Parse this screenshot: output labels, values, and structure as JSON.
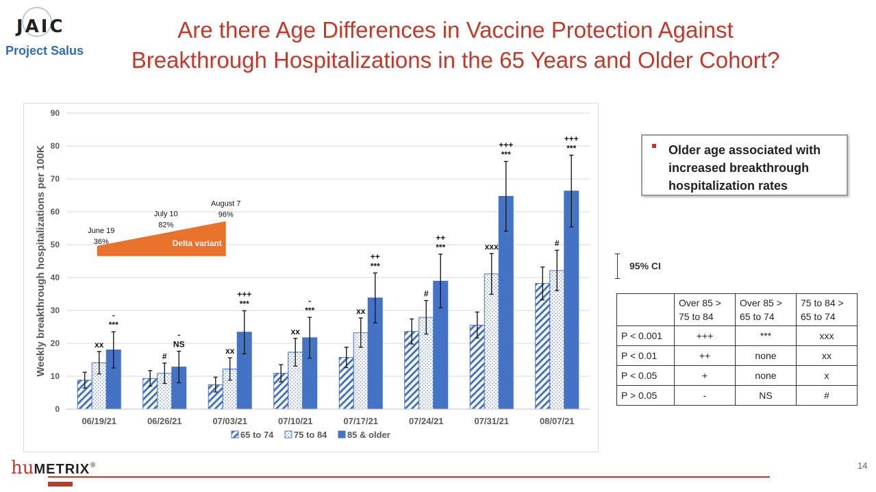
{
  "header": {
    "logo_text": "JAIC",
    "logo_subtitle": "Project Salus",
    "title_line1": "Are there Age Differences in Vaccine Protection Against",
    "title_line2": "Breakthrough Hospitalizations in the 65 Years and Older Cohort?"
  },
  "chart_data": {
    "type": "bar",
    "ylabel": "Weekly breakthrough hospitalizations per 100K",
    "xlabel": "",
    "ylim": [
      0,
      90
    ],
    "yticks": [
      0,
      10,
      20,
      30,
      40,
      50,
      60,
      70,
      80,
      90
    ],
    "grid": true,
    "legend_position": "bottom",
    "categories": [
      "06/19/21",
      "06/26/21",
      "07/03/21",
      "07/10/21",
      "07/17/21",
      "07/24/21",
      "07/31/21",
      "08/07/21"
    ],
    "series": [
      {
        "name": "65 to 74",
        "color": "#4472c4",
        "pattern": "diagonal-hatch",
        "values": [
          8.8,
          9.3,
          7.4,
          10.9,
          15.7,
          23.6,
          25.5,
          38.2
        ],
        "ci_low": [
          6.4,
          7.0,
          5.2,
          8.3,
          12.6,
          19.8,
          21.6,
          33.2
        ],
        "ci_high": [
          11.2,
          11.7,
          9.7,
          13.5,
          18.8,
          27.4,
          29.5,
          43.2
        ]
      },
      {
        "name": "75 to 84",
        "color": "#4472c4",
        "pattern": "dots",
        "values": [
          14.1,
          10.9,
          12.2,
          17.3,
          23.2,
          27.9,
          41.1,
          42.1
        ],
        "ci_low": [
          10.7,
          7.8,
          8.8,
          13.1,
          18.8,
          22.8,
          34.9,
          36.0
        ],
        "ci_high": [
          17.5,
          14.0,
          15.6,
          21.5,
          27.7,
          33.0,
          47.3,
          48.3
        ]
      },
      {
        "name": "85 & older",
        "color": "#4472c4",
        "pattern": "solid",
        "values": [
          18.0,
          12.8,
          23.4,
          21.7,
          33.8,
          38.9,
          64.7,
          66.3
        ],
        "ci_low": [
          12.5,
          8.0,
          16.8,
          15.5,
          26.2,
          30.8,
          54.1,
          55.4
        ],
        "ci_high": [
          23.5,
          17.6,
          29.9,
          27.9,
          41.4,
          47.1,
          75.3,
          77.2
        ]
      }
    ],
    "significance_annotations": [
      {
        "category": "06/19/21",
        "above": "85 & older",
        "lines": [
          "-",
          "***"
        ]
      },
      {
        "category": "06/19/21",
        "above": "75 to 84",
        "lines": [
          "xx"
        ]
      },
      {
        "category": "06/26/21",
        "above": "85 & older",
        "lines": [
          "-",
          "NS"
        ]
      },
      {
        "category": "06/26/21",
        "above": "75 to 84",
        "lines": [
          "#"
        ]
      },
      {
        "category": "07/03/21",
        "above": "85 & older",
        "lines": [
          "+++",
          "***"
        ]
      },
      {
        "category": "07/03/21",
        "above": "75 to 84",
        "lines": [
          "xx"
        ]
      },
      {
        "category": "07/10/21",
        "above": "85 & older",
        "lines": [
          "-",
          "***"
        ]
      },
      {
        "category": "07/10/21",
        "above": "75 to 84",
        "lines": [
          "xx"
        ]
      },
      {
        "category": "07/17/21",
        "above": "85 & older",
        "lines": [
          "++",
          "***"
        ]
      },
      {
        "category": "07/17/21",
        "above": "75 to 84",
        "lines": [
          "xx"
        ]
      },
      {
        "category": "07/24/21",
        "above": "85 & older",
        "lines": [
          "++",
          "***"
        ]
      },
      {
        "category": "07/24/21",
        "above": "75 to 84",
        "lines": [
          "#"
        ]
      },
      {
        "category": "07/31/21",
        "above": "85 & older",
        "lines": [
          "+++",
          "***"
        ]
      },
      {
        "category": "07/31/21",
        "above": "75 to 84",
        "lines": [
          "xxx"
        ]
      },
      {
        "category": "08/07/21",
        "above": "85 & older",
        "lines": [
          "+++",
          "***"
        ]
      },
      {
        "category": "08/07/21",
        "above": "75 to 84",
        "lines": [
          "#"
        ]
      }
    ],
    "delta_variant": {
      "label": "Delta variant",
      "color": "#e8712b",
      "points": [
        {
          "date": "June 19",
          "share": "36%",
          "category": "06/19/21"
        },
        {
          "date": "July 10",
          "share": "82%",
          "category": "07/10/21"
        },
        {
          "date": "August 7",
          "share": "96%",
          "category": "08/07/21"
        }
      ]
    }
  },
  "callout": {
    "text": "Older age associated with increased breakthrough hospitalization rates"
  },
  "ci_legend": {
    "label": "95% CI"
  },
  "p_table": {
    "headers": [
      "Over 85 > 75 to 84",
      "Over 85 > 65 to 74",
      "75 to 84 > 65 to 74"
    ],
    "rows": [
      {
        "label": "P < 0.001",
        "values": [
          "+++",
          "***",
          "xxx"
        ]
      },
      {
        "label": "P < 0.01",
        "values": [
          "++",
          "none",
          "xx"
        ]
      },
      {
        "label": "P < 0.05",
        "values": [
          "+",
          "none",
          "x"
        ]
      },
      {
        "label": "P > 0.05",
        "values": [
          "-",
          "NS",
          "#"
        ]
      }
    ]
  },
  "footer": {
    "brand_prefix": "hu",
    "brand_rest": "METRIX",
    "brand_mark": "®",
    "page_number": "14"
  }
}
